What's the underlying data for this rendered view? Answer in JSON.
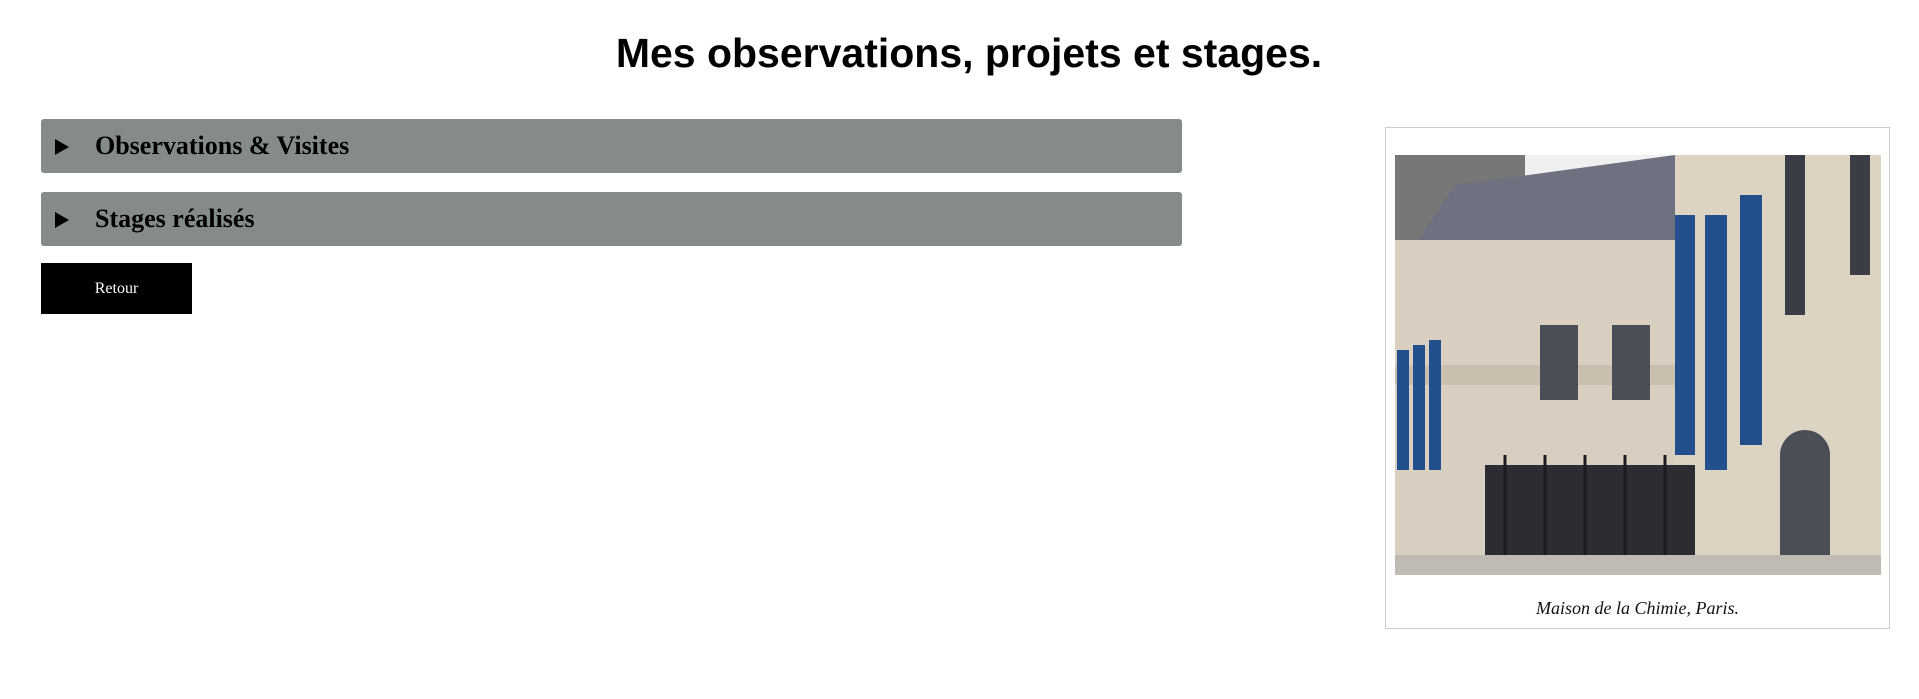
{
  "header": {
    "title": "Mes observations, projets et stages."
  },
  "sections": [
    {
      "label": "Observations & Visites"
    },
    {
      "label": "Stages réalisés"
    }
  ],
  "button": {
    "label": "Retour"
  },
  "figure": {
    "caption": "Maison de la Chimie, Paris."
  }
}
